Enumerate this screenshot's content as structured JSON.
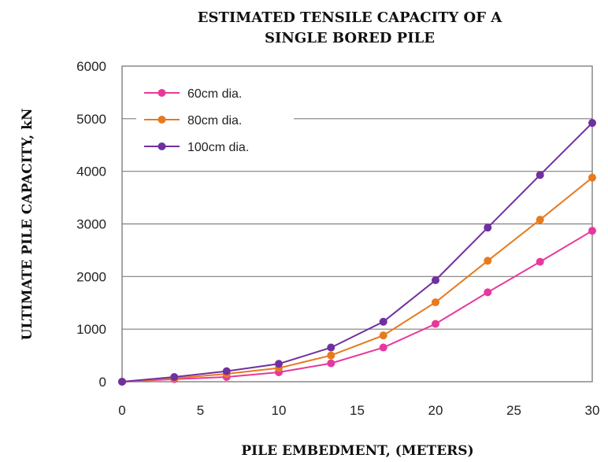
{
  "chart_data": {
    "type": "line",
    "title_lines": [
      "ESTIMATED TENSILE CAPACITY OF A",
      "SINGLE BORED PILE"
    ],
    "xlabel": "PILE EMBEDMENT, (METERS)",
    "ylabel": "ULTIMATE PILE CAPACITY, kN",
    "x": [
      0,
      3.33,
      6.67,
      10,
      13.33,
      16.67,
      20,
      23.33,
      26.67,
      30
    ],
    "xlim": [
      0,
      30
    ],
    "ylim": [
      0,
      6000
    ],
    "xticks": [
      "0",
      "5",
      "10",
      "15",
      "20",
      "25",
      "30"
    ],
    "yticks": [
      "0",
      "1000",
      "2000",
      "3000",
      "4000",
      "5000",
      "6000"
    ],
    "grid": "horizontal",
    "legend_position": "top-left",
    "series": [
      {
        "name": "60cm dia.",
        "color": "#e8389c",
        "values": [
          0,
          50,
          90,
          180,
          350,
          650,
          1100,
          1700,
          2280,
          2870
        ]
      },
      {
        "name": "80cm dia.",
        "color": "#e87a1e",
        "values": [
          0,
          65,
          150,
          260,
          500,
          880,
          1510,
          2300,
          3080,
          3880
        ]
      },
      {
        "name": "100cm dia.",
        "color": "#7030a0",
        "values": [
          0,
          90,
          200,
          340,
          650,
          1140,
          1930,
          2930,
          3930,
          4920
        ]
      }
    ]
  }
}
